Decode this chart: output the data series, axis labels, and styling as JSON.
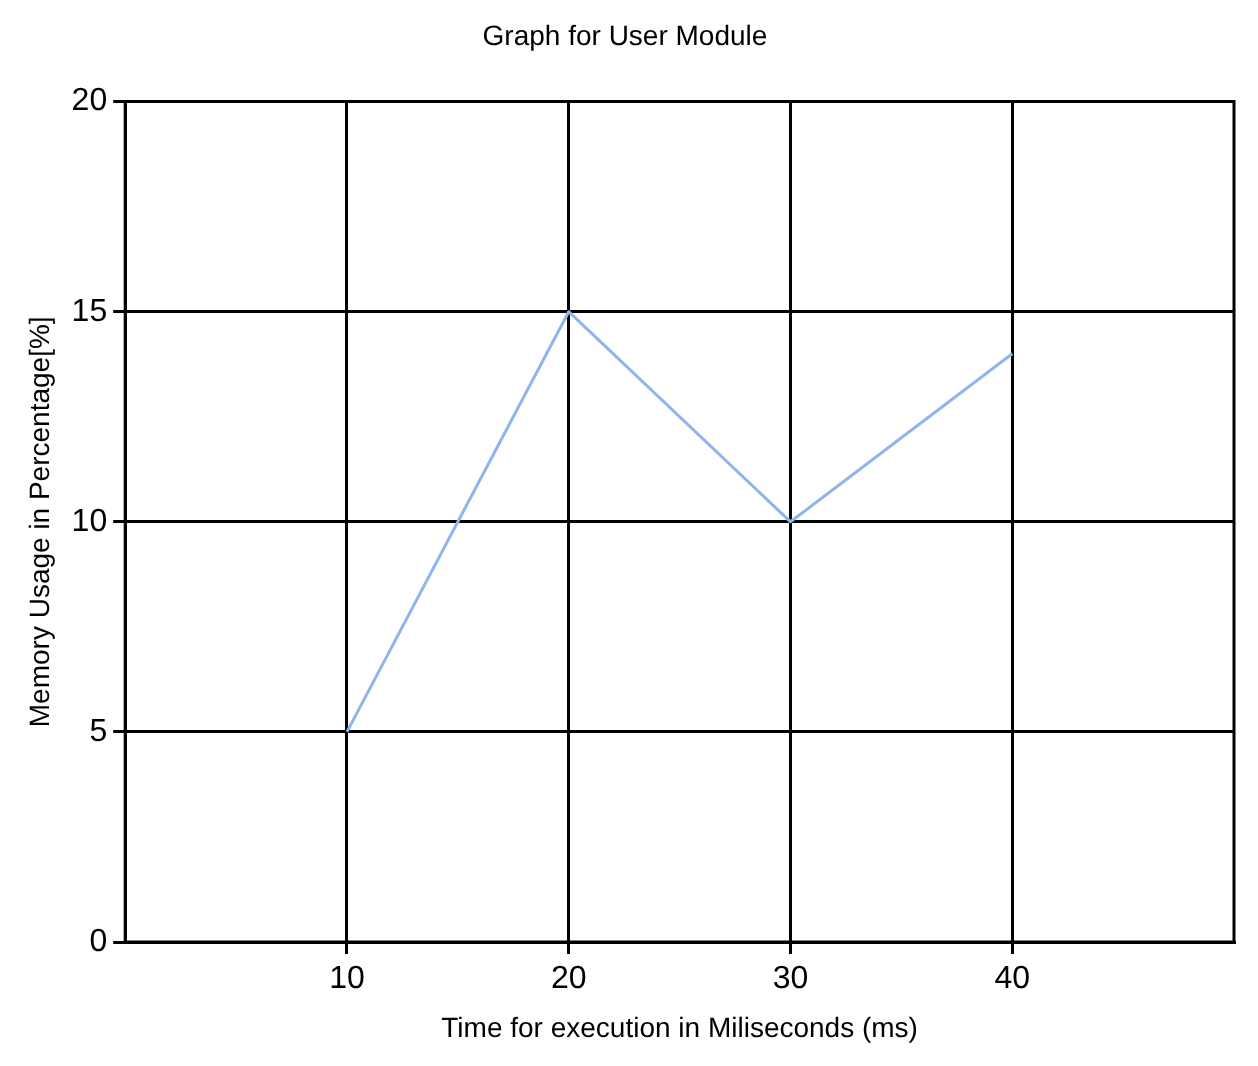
{
  "chart_data": {
    "type": "line",
    "title": "Graph for User Module",
    "xlabel": "Time for execution in Miliseconds (ms)",
    "ylabel": "Memory Usage in Percentage[%]",
    "x": [
      10,
      20,
      30,
      40
    ],
    "series": [
      {
        "color": "#8fb4ee",
        "values": [
          5,
          15,
          10,
          14
        ]
      }
    ],
    "xlim": [
      0,
      50
    ],
    "xticks": [
      10,
      20,
      30,
      40
    ],
    "ylim": [
      0,
      20
    ],
    "yticks": [
      0,
      5,
      10,
      15,
      20
    ],
    "grid": true,
    "legend": false,
    "marker": "none",
    "line_style": "solid"
  }
}
